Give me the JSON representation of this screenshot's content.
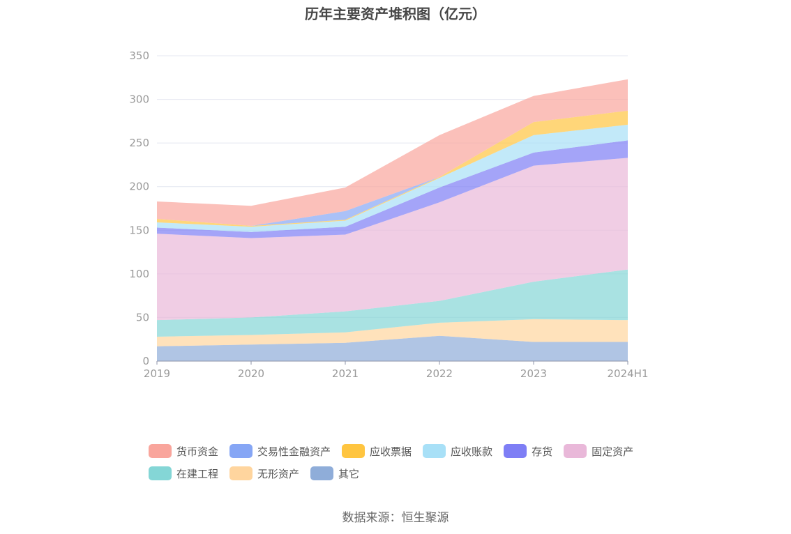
{
  "chart_data": {
    "type": "area",
    "stacked": true,
    "title": "历年主要资产堆积图（亿元）",
    "categories": [
      "2019",
      "2020",
      "2021",
      "2022",
      "2023",
      "2024H1"
    ],
    "ylim": [
      0,
      350
    ],
    "yticks": [
      0,
      50,
      100,
      150,
      200,
      250,
      300,
      350
    ],
    "grid": true,
    "legend_position": "bottom",
    "series": [
      {
        "name": "其它",
        "color": "#8fadd9",
        "values": [
          17,
          19,
          21,
          29,
          22,
          22
        ]
      },
      {
        "name": "无形资产",
        "color": "#ffd59e",
        "values": [
          11,
          11,
          12,
          15,
          26,
          25
        ]
      },
      {
        "name": "在建工程",
        "color": "#84d6d6",
        "values": [
          19,
          20,
          24,
          25,
          43,
          58
        ]
      },
      {
        "name": "固定资产",
        "color": "#e9b8d9",
        "values": [
          99,
          91,
          88,
          113,
          133,
          128
        ]
      },
      {
        "name": "存货",
        "color": "#7e7ef5",
        "values": [
          7,
          7,
          9,
          17,
          15,
          20
        ]
      },
      {
        "name": "应收账款",
        "color": "#a8e0f7",
        "values": [
          6,
          6,
          7,
          11,
          20,
          18
        ]
      },
      {
        "name": "应收票据",
        "color": "#ffc540",
        "values": [
          4,
          1,
          1,
          1,
          15,
          16
        ]
      },
      {
        "name": "交易性金融资产",
        "color": "#86a6f5",
        "values": [
          0,
          0,
          10,
          0,
          0,
          0
        ]
      },
      {
        "name": "货币资金",
        "color": "#f9a59c",
        "values": [
          20,
          23,
          27,
          48,
          30,
          36
        ]
      }
    ],
    "legend_order": [
      "货币资金",
      "交易性金融资产",
      "应收票据",
      "应收账款",
      "存货",
      "固定资产",
      "在建工程",
      "无形资产",
      "其它"
    ]
  },
  "source": "数据来源：恒生聚源"
}
